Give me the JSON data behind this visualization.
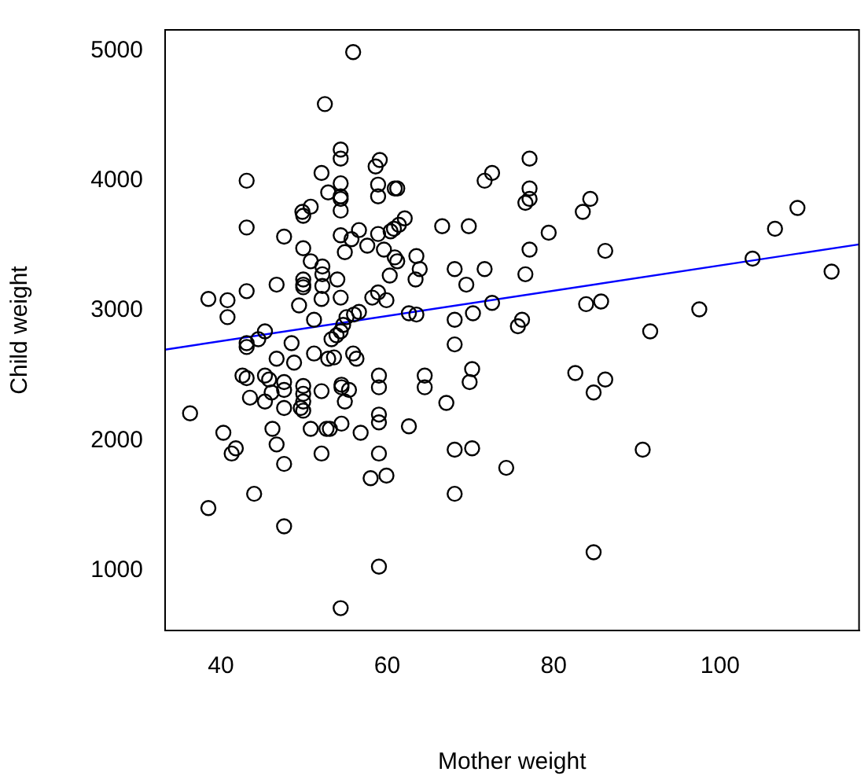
{
  "chart_data": {
    "type": "scatter",
    "xlabel": "Mother weight",
    "ylabel": "Child weight",
    "xlim": [
      33.3,
      116.7
    ],
    "ylim": [
      538,
      5161
    ],
    "xticks": [
      40,
      60,
      80,
      100
    ],
    "yticks": [
      1000,
      2000,
      3000,
      4000,
      5000
    ],
    "grid": false,
    "legend": false,
    "marker": "circle",
    "series": [
      {
        "color": "#000000",
        "x": [
          52.5,
          43.1,
          52.1,
          52.9,
          49.8,
          50.8,
          49.9,
          43.1,
          47.6,
          49.9,
          50.8,
          52.2,
          52.2,
          52.2,
          49.9,
          49.9,
          49.9,
          43.1,
          46.7,
          38.5,
          40.8,
          40.8,
          49.4,
          52.1,
          51.2,
          45.3,
          44.5,
          43.1,
          43.1,
          48.5,
          46.7,
          48.8,
          51.2,
          52.9,
          42.6,
          43.1,
          45.3,
          45.8,
          47.6,
          47.6,
          46.1,
          49.9,
          49.9,
          49.9,
          49.6,
          49.9,
          52.1,
          43.5,
          45.3,
          47.6,
          36.3,
          46.2,
          50.8,
          52.7,
          40.3,
          46.7,
          41.8,
          41.3,
          52.1,
          47.6,
          44.0,
          38.5,
          47.6,
          55.9,
          54.4,
          54.4,
          58.6,
          59.1,
          71.7,
          72.6,
          54.4,
          54.4,
          54.4,
          54.4,
          58.9,
          58.9,
          60.9,
          61.2,
          62.1,
          61.4,
          60.8,
          60.4,
          66.6,
          69.8,
          56.6,
          55.7,
          54.4,
          54.9,
          57.6,
          58.9,
          59.6,
          60.9,
          61.2,
          63.5,
          63.9,
          63.4,
          60.3,
          68.1,
          69.5,
          71.7,
          54.0,
          54.4,
          58.2,
          58.9,
          59.9,
          56.6,
          56.0,
          55.1,
          54.7,
          54.4,
          53.9,
          53.3,
          62.6,
          63.5,
          68.1,
          70.3,
          72.6,
          68.1,
          53.6,
          55.9,
          56.3,
          59.0,
          59.0,
          64.5,
          64.5,
          70.2,
          69.9,
          67.1,
          54.5,
          54.5,
          55.4,
          54.9,
          59.0,
          59.0,
          53.1,
          54.5,
          56.8,
          62.6,
          59.0,
          58.0,
          59.9,
          68.1,
          70.2,
          68.1,
          74.3,
          59.0,
          54.4,
          77.1,
          77.1,
          77.1,
          76.6,
          84.4,
          83.5,
          79.4,
          77.1,
          86.2,
          76.6,
          103.9,
          106.6,
          109.3,
          113.4,
          83.9,
          85.7,
          76.2,
          75.7,
          97.5,
          91.6,
          82.6,
          84.8,
          86.2,
          90.7,
          84.8
        ],
        "values": [
          4590,
          4000,
          4060,
          3910,
          3760,
          3800,
          3730,
          3640,
          3570,
          3480,
          3380,
          3340,
          3280,
          3190,
          3240,
          3200,
          3180,
          3150,
          3200,
          3090,
          3080,
          2950,
          3040,
          3090,
          2930,
          2840,
          2780,
          2750,
          2720,
          2750,
          2630,
          2600,
          2670,
          2630,
          2500,
          2480,
          2500,
          2470,
          2450,
          2390,
          2370,
          2420,
          2360,
          2300,
          2250,
          2230,
          2380,
          2330,
          2300,
          2250,
          2210,
          2090,
          2090,
          2090,
          2060,
          1970,
          1940,
          1900,
          1900,
          1820,
          1590,
          1480,
          1340,
          4990,
          4240,
          4170,
          4110,
          4160,
          4000,
          4060,
          3980,
          3880,
          3860,
          3770,
          3970,
          3880,
          3940,
          3940,
          3710,
          3660,
          3630,
          3610,
          3650,
          3650,
          3620,
          3550,
          3580,
          3450,
          3500,
          3590,
          3470,
          3410,
          3380,
          3420,
          3320,
          3240,
          3270,
          3320,
          3200,
          3320,
          3240,
          3100,
          3100,
          3140,
          3080,
          2990,
          2970,
          2950,
          2890,
          2840,
          2810,
          2780,
          2980,
          2970,
          2930,
          2980,
          3060,
          2740,
          2640,
          2670,
          2630,
          2500,
          2410,
          2500,
          2410,
          2550,
          2450,
          2290,
          2430,
          2410,
          2390,
          2300,
          2200,
          2140,
          2090,
          2130,
          2060,
          2110,
          1900,
          1710,
          1730,
          1930,
          1940,
          1590,
          1790,
          1030,
          710,
          4170,
          3940,
          3860,
          3830,
          3860,
          3760,
          3600,
          3470,
          3460,
          3280,
          3400,
          3630,
          3790,
          3300,
          3050,
          3070,
          2930,
          2880,
          3010,
          2840,
          2520,
          2370,
          2470,
          1930,
          1140
        ]
      },
      {
        "type": "line",
        "marker": "none",
        "color": "#0000ff",
        "x": [
          33.3,
          116.7
        ],
        "values": [
          2700,
          3510
        ]
      }
    ]
  }
}
